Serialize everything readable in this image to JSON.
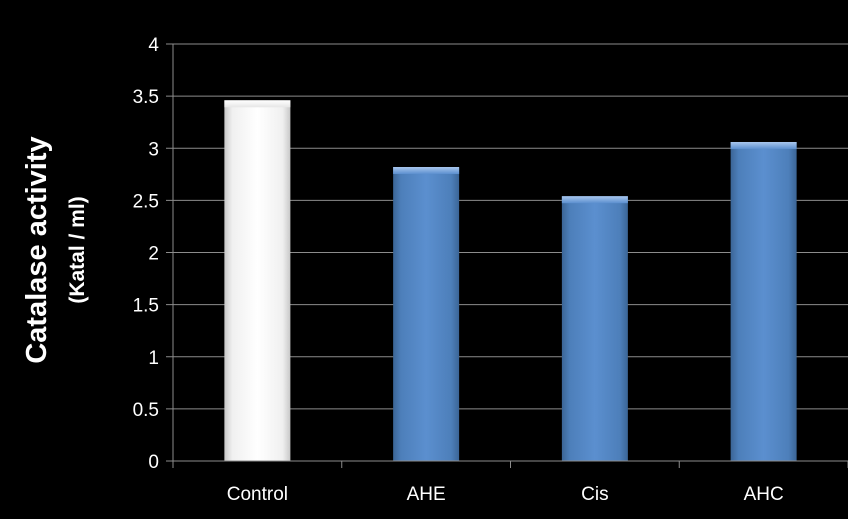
{
  "chart_data": {
    "type": "bar",
    "categories": [
      "Control",
      "AHE",
      "Cis",
      "AHC"
    ],
    "values": [
      3.46,
      2.82,
      2.54,
      3.06
    ],
    "ylabel": "Catalase activity",
    "ylabel_unit": "(Katal / ml)",
    "ylim": [
      0,
      4
    ],
    "yticks": [
      "0",
      "0.5",
      "1",
      "1.5",
      "2",
      "2.5",
      "3",
      "3.5",
      "4"
    ],
    "ytick_values": [
      0,
      0.5,
      1,
      1.5,
      2,
      2.5,
      3,
      3.5,
      4
    ],
    "grid": true,
    "bar_colors": [
      "#ffffff",
      "#4f81bd",
      "#4f81bd",
      "#4f81bd"
    ],
    "background": "#000000"
  }
}
